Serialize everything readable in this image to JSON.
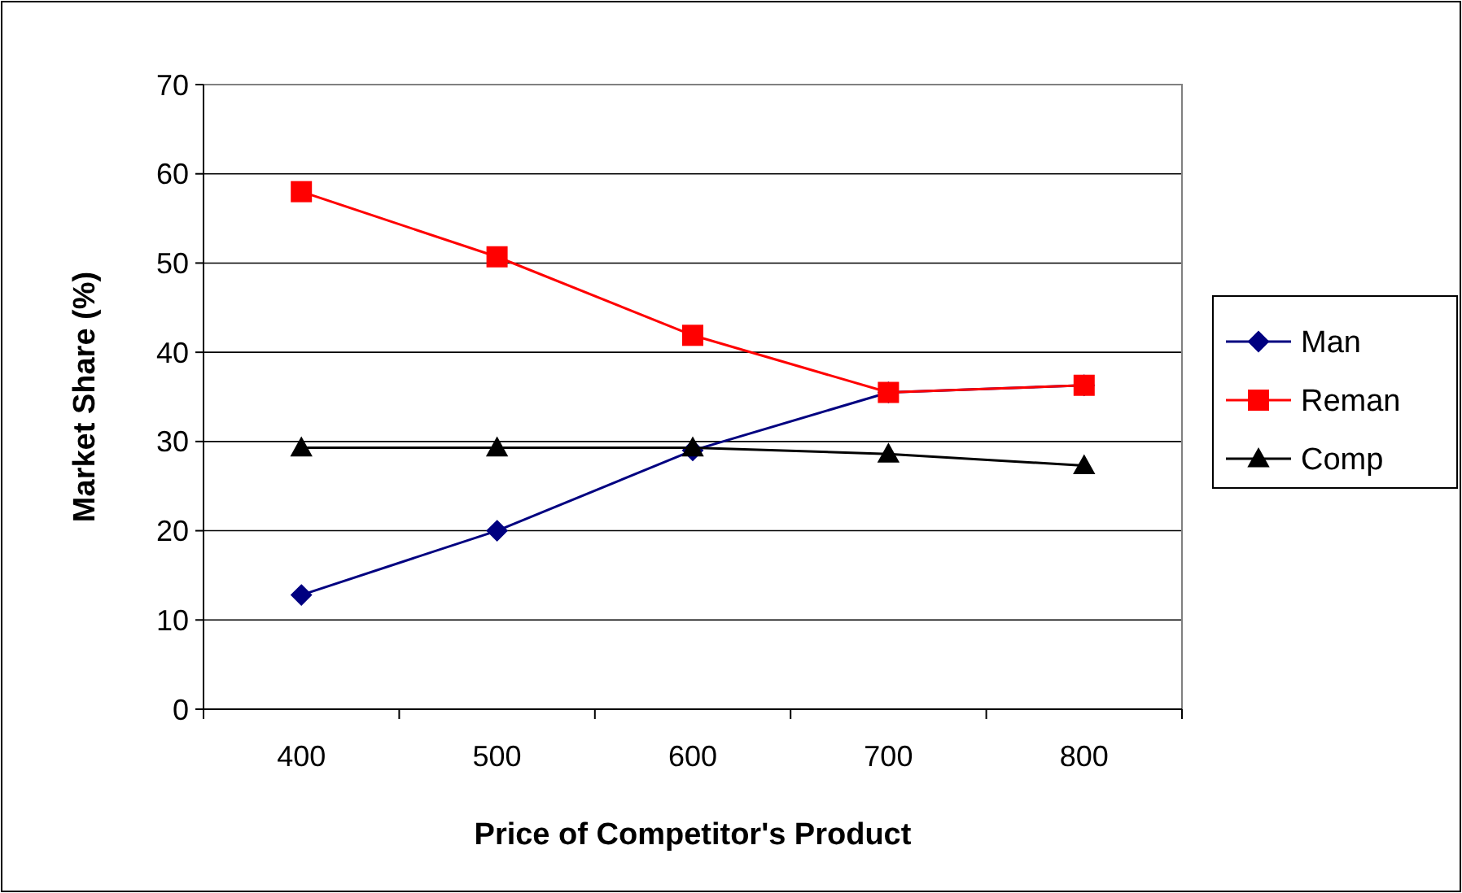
{
  "chart_data": {
    "type": "line",
    "xlabel": "Price of Competitor's Product",
    "ylabel": "Market Share (%)",
    "categories": [
      "400",
      "500",
      "600",
      "700",
      "800"
    ],
    "series": [
      {
        "name": "Man",
        "color": "#000080",
        "marker": "diamond",
        "values": [
          12.8,
          20.0,
          29.0,
          35.5,
          36.3
        ]
      },
      {
        "name": "Reman",
        "color": "#ff0000",
        "marker": "square",
        "values": [
          58.0,
          50.7,
          41.9,
          35.5,
          36.3
        ]
      },
      {
        "name": "Comp",
        "color": "#000000",
        "marker": "triangle",
        "values": [
          29.3,
          29.3,
          29.3,
          28.6,
          27.3
        ]
      }
    ],
    "ylim": [
      0,
      70
    ],
    "yticks": [
      0,
      10,
      20,
      30,
      40,
      50,
      60,
      70
    ],
    "grid": "y",
    "legend": "right"
  }
}
